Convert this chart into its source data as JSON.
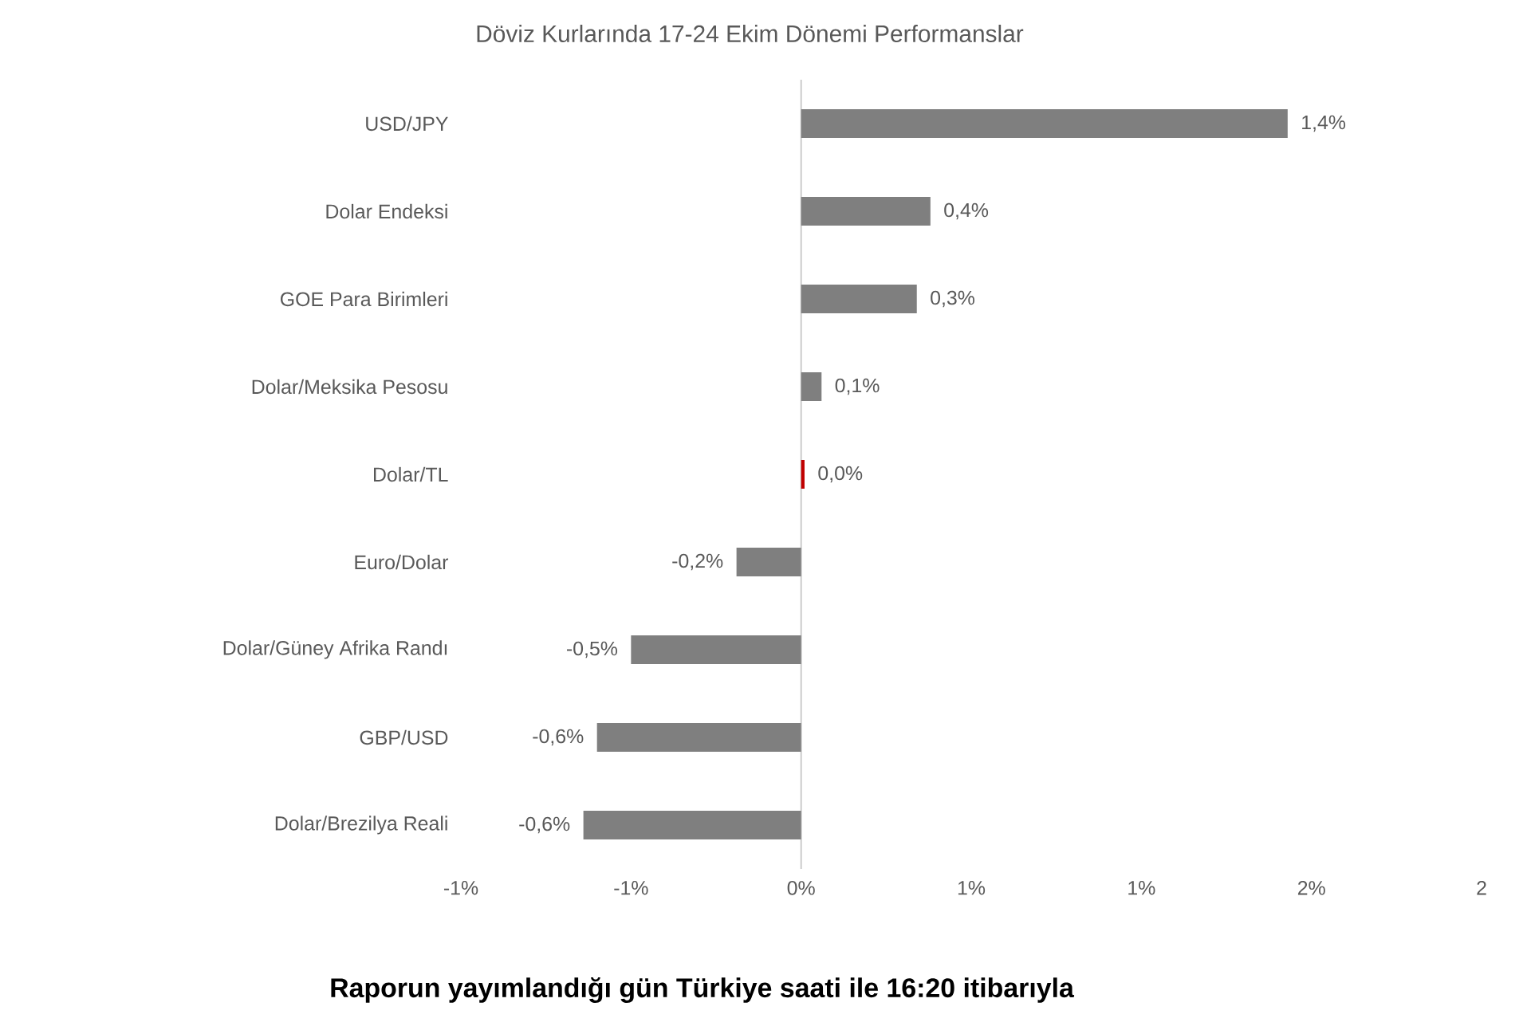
{
  "chart_data": {
    "type": "bar",
    "orientation": "horizontal",
    "title": "Döviz Kurlarında 17-24 Ekim Dönemi Performanslar",
    "categories": [
      "USD/JPY",
      "Dolar Endeksi",
      "GOE Para Birimleri",
      "Dolar/Meksika Pesosu",
      "Dolar/TL",
      "Euro/Dolar",
      "Dolar/Güney Afrika Randı",
      "GBP/USD",
      "Dolar/Brezilya Reali"
    ],
    "values": [
      1.43,
      0.38,
      0.34,
      0.06,
      0.01,
      -0.19,
      -0.5,
      -0.6,
      -0.64
    ],
    "value_labels": [
      "1,4%",
      "0,4%",
      "0,3%",
      "0,1%",
      "0,0%",
      "-0,2%",
      "-0,5%",
      "-0,6%",
      "-0,6%"
    ],
    "colors": [
      "#7f7f7f",
      "#7f7f7f",
      "#7f7f7f",
      "#7f7f7f",
      "#c00000",
      "#7f7f7f",
      "#7f7f7f",
      "#7f7f7f",
      "#7f7f7f"
    ],
    "xlim": [
      -1,
      2
    ],
    "xticks": [
      {
        "value": -1,
        "label": "-1%"
      },
      {
        "value": -0.5,
        "label": "-1%"
      },
      {
        "value": 0,
        "label": "0%"
      },
      {
        "value": 0.5,
        "label": "1%"
      },
      {
        "value": 1,
        "label": "1%"
      },
      {
        "value": 1.5,
        "label": "2%"
      },
      {
        "value": 2,
        "label": "2"
      }
    ],
    "annotations": [
      "Raporun yayımlandığı gün Türkiye saati ile 16:20 itibarıyla"
    ]
  }
}
